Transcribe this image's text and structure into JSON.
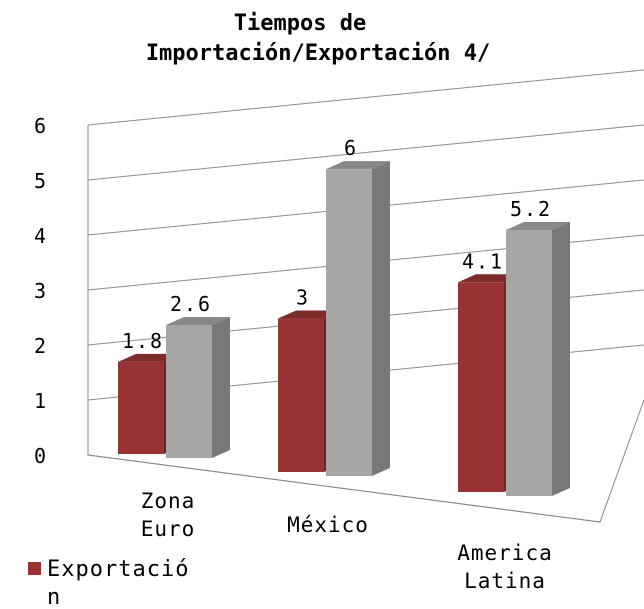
{
  "chart_data": {
    "type": "bar",
    "title_lines": [
      "Tiempos de",
      "Importación/Exportación 4/"
    ],
    "categories": [
      [
        "Zona",
        "Euro"
      ],
      [
        "México"
      ],
      [
        "America",
        "Latina"
      ]
    ],
    "series": [
      {
        "name": "Exportación",
        "values": [
          1.8,
          3,
          4.1
        ],
        "labels": [
          "1.8",
          "3",
          "4.1"
        ],
        "color": "#993333"
      },
      {
        "values": [
          2.6,
          6,
          5.2
        ],
        "labels": [
          "2.6",
          "6",
          "5.2"
        ],
        "color": "#a6a6a6"
      }
    ],
    "yticks": [
      "0",
      "1",
      "2",
      "3",
      "4",
      "5",
      "6"
    ],
    "ylim": [
      0,
      6
    ],
    "grid": true,
    "legend": {
      "position": "bottom-left",
      "label_lines": [
        "Exportació",
        "n"
      ]
    },
    "style": "3d-clustered-column"
  }
}
